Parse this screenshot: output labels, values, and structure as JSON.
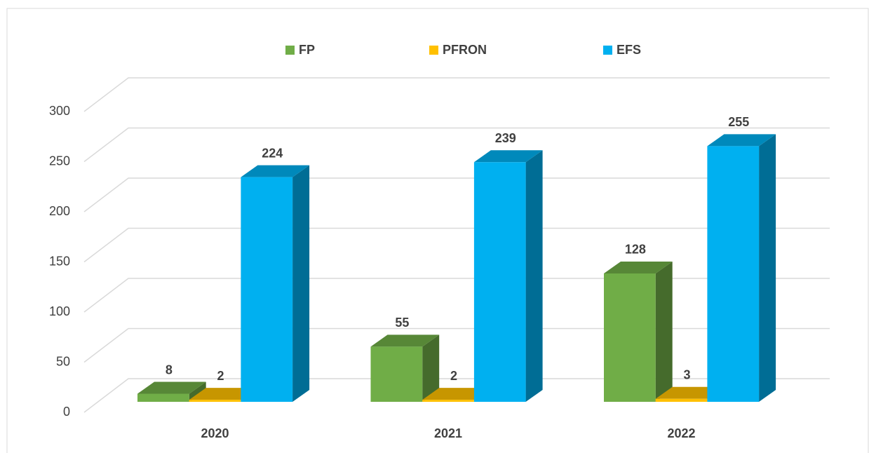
{
  "chart_data": {
    "type": "bar3d",
    "categories": [
      "2020",
      "2021",
      "2022"
    ],
    "series": [
      {
        "name": "FP",
        "color": "#70ad47",
        "values": [
          8,
          55,
          128
        ]
      },
      {
        "name": "PFRON",
        "color": "#ffc000",
        "values": [
          2,
          2,
          3
        ]
      },
      {
        "name": "EFS",
        "color": "#00b0f0",
        "values": [
          224,
          239,
          255
        ]
      }
    ],
    "ylim": [
      0,
      300
    ],
    "yticks": [
      0,
      50,
      100,
      150,
      200,
      250,
      300
    ],
    "grid": true,
    "legend": "top"
  }
}
